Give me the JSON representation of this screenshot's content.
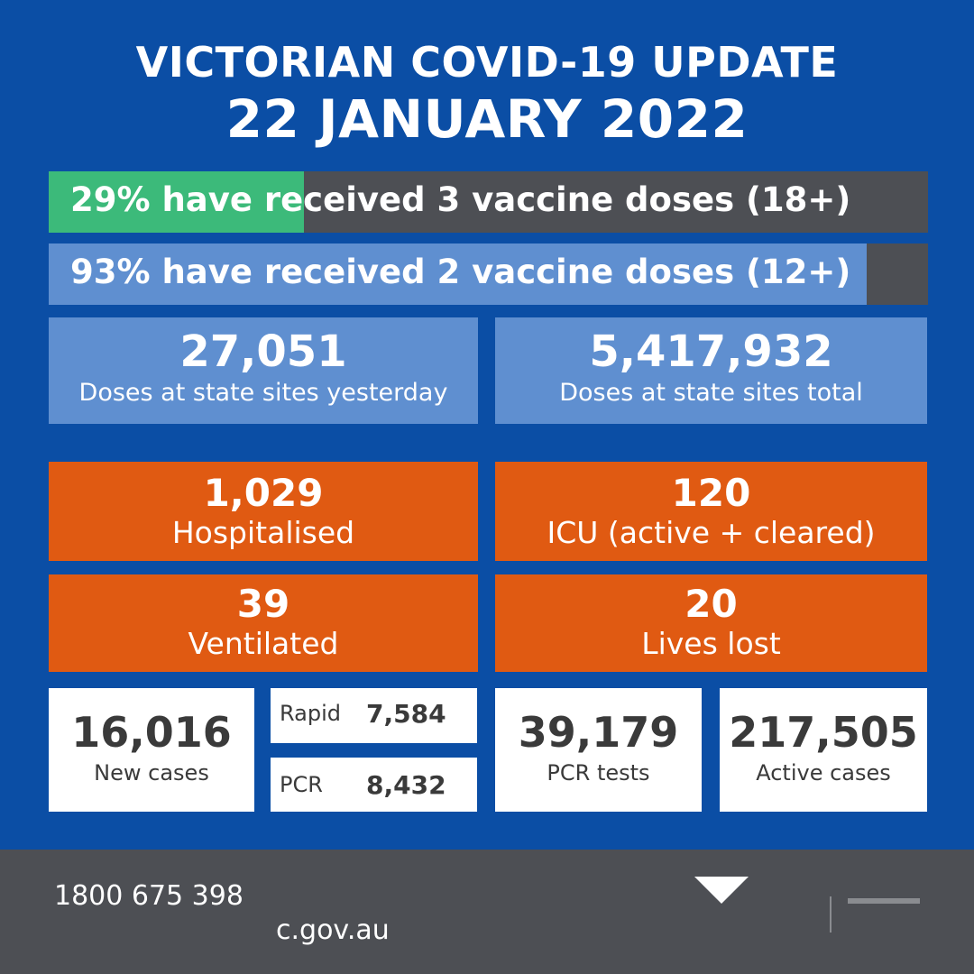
{
  "header": {
    "title_line1": "VICTORIAN COVID-19 UPDATE",
    "title_line2": "22 JANUARY 2022"
  },
  "vaccination": [
    {
      "text": "29% have received 3 vaccine doses (18+)",
      "percent": 29,
      "fill_color": "#3cba7a",
      "track_color": "#4d4f54"
    },
    {
      "text": "93% have received 2 vaccine doses (12+)",
      "percent": 93,
      "fill_color": "#5f8fd0",
      "track_color": "#4d4f54"
    }
  ],
  "doses": {
    "yesterday": {
      "value": "27,051",
      "label": "Doses at state sites yesterday"
    },
    "total": {
      "value": "5,417,932",
      "label": "Doses at state sites total"
    }
  },
  "hospital": {
    "hospitalised": {
      "value": "1,029",
      "label": "Hospitalised"
    },
    "icu": {
      "value": "120",
      "label": "ICU (active + cleared)"
    },
    "ventilated": {
      "value": "39",
      "label": "Ventilated"
    },
    "deaths": {
      "value": "20",
      "label": "Lives lost"
    }
  },
  "cases": {
    "new": {
      "value": "16,016",
      "label": "New cases"
    },
    "rapid": {
      "label": "Rapid",
      "value": "7,584"
    },
    "pcr": {
      "label": "PCR",
      "value": "8,432"
    },
    "pcr_tests": {
      "value": "39,179",
      "label": "PCR tests"
    },
    "active": {
      "value": "217,505",
      "label": "Active cases"
    }
  },
  "footer": {
    "phone": "1800 675 398",
    "website": "c.gov.au"
  },
  "colors": {
    "background": "#0b4ea5",
    "orange": "#e05a12",
    "light_blue": "#5f8fd0",
    "green": "#3cba7a",
    "dark_grey": "#4d4f54"
  }
}
